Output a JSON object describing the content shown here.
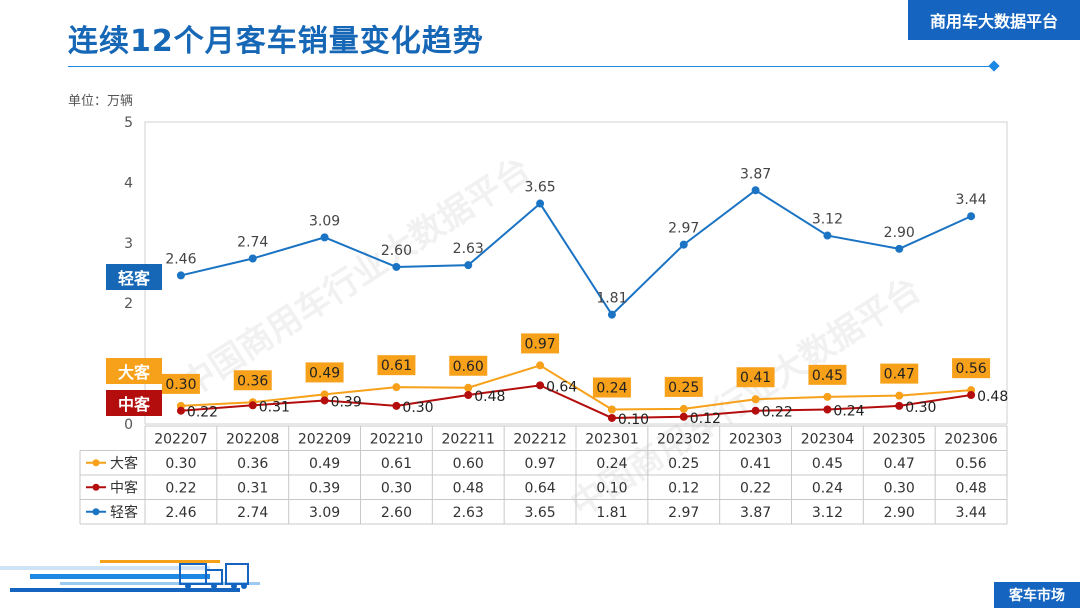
{
  "title": "连续12个月客车销量变化趋势",
  "brand": "商用车大数据平台",
  "unit_label": "单位：万辆",
  "footer_tag": "客车市场",
  "watermark": "中国商用车行业大数据平台",
  "series_tags": {
    "light": "轻客",
    "big": "大客",
    "mid": "中客"
  },
  "colors": {
    "light": "#1a73c3",
    "big": "#f7a11a",
    "mid": "#b40d0d",
    "brand": "#1565c0"
  },
  "chart_data": {
    "type": "line",
    "title": "连续12个月客车销量变化趋势",
    "ylabel": "单位：万辆",
    "ylim": [
      0,
      5
    ],
    "yticks": [
      0,
      1,
      2,
      3,
      4,
      5
    ],
    "categories": [
      "202207",
      "202208",
      "202209",
      "202210",
      "202211",
      "202212",
      "202301",
      "202302",
      "202303",
      "202304",
      "202305",
      "202306"
    ],
    "series": [
      {
        "name": "大客",
        "values": [
          0.3,
          0.36,
          0.49,
          0.61,
          0.6,
          0.97,
          0.24,
          0.25,
          0.41,
          0.45,
          0.47,
          0.56
        ]
      },
      {
        "name": "中客",
        "values": [
          0.22,
          0.31,
          0.39,
          0.3,
          0.48,
          0.64,
          0.1,
          0.12,
          0.22,
          0.24,
          0.3,
          0.48
        ]
      },
      {
        "name": "轻客",
        "values": [
          2.46,
          2.74,
          3.09,
          2.6,
          2.63,
          3.65,
          1.81,
          2.97,
          3.87,
          3.12,
          2.9,
          3.44
        ]
      }
    ],
    "grid": false,
    "legend": "data table below chart"
  }
}
